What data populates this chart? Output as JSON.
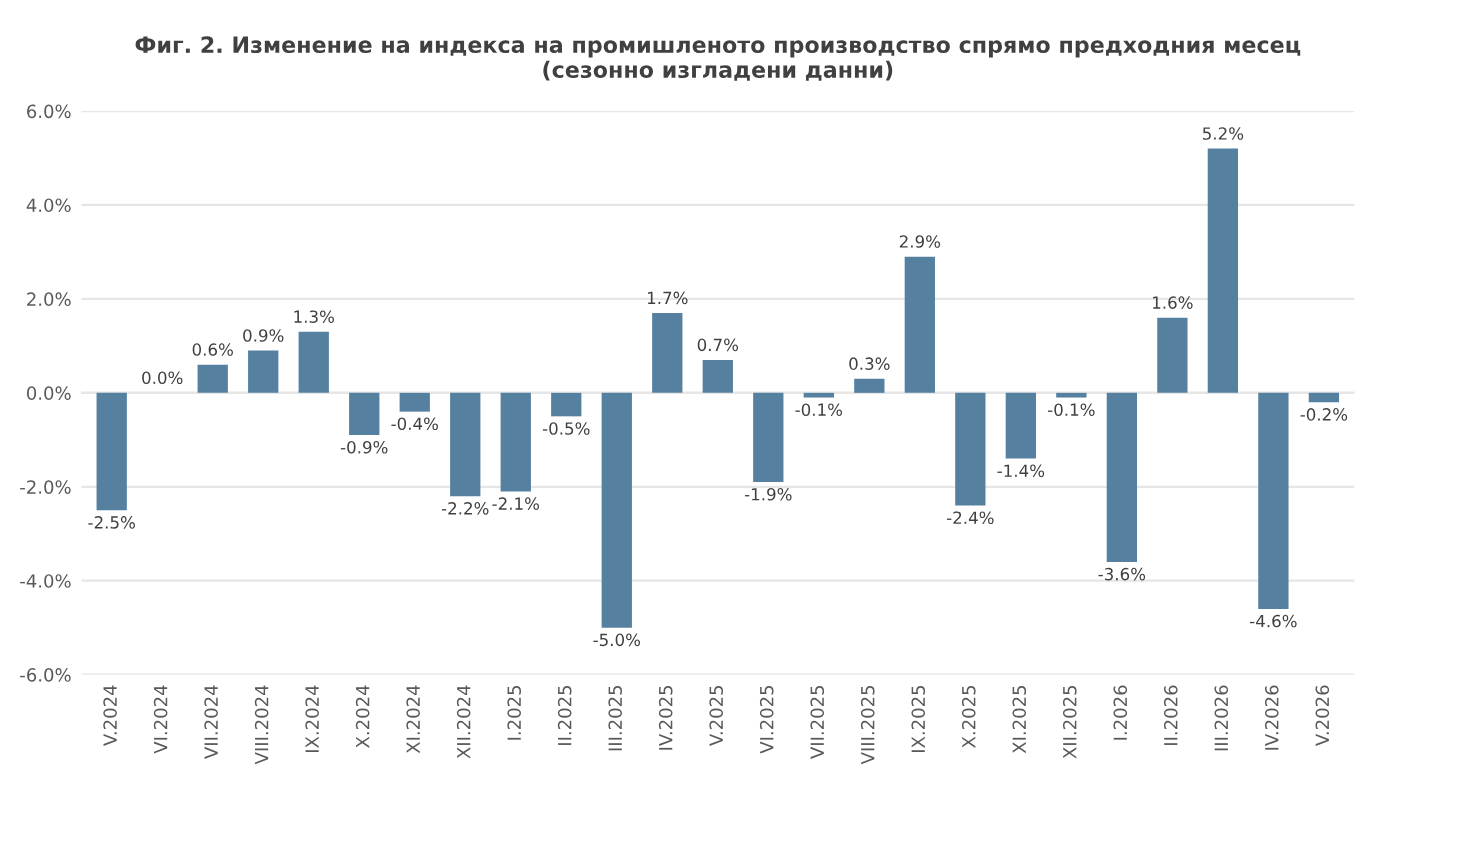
{
  "chart_data": {
    "type": "bar",
    "title": "Фиг. 2. Изменение на индекса на промишленото производство спрямо предходния месец\n(сезонно изгладени данни)",
    "categories": [
      "V.2024",
      "VI.2024",
      "VII.2024",
      "VIII.2024",
      "IX.2024",
      "X.2024",
      "XI.2024",
      "XII.2024",
      "I.2025",
      "II.2025",
      "III.2025",
      "IV.2025",
      "V.2025",
      "VI.2025",
      "VII.2025",
      "VIII.2025",
      "IX.2025",
      "X.2025",
      "XI.2025",
      "XII.2025",
      "I.2026",
      "II.2026",
      "III.2026",
      "IV.2026",
      "V.2026"
    ],
    "values": [
      -2.5,
      0.0,
      0.6,
      0.9,
      1.3,
      -0.9,
      -0.4,
      -2.2,
      -2.1,
      -0.5,
      -5.0,
      1.7,
      0.7,
      -1.9,
      -0.1,
      0.3,
      2.9,
      -2.4,
      -1.4,
      -0.1,
      -3.6,
      1.6,
      5.2,
      -4.6,
      -0.2
    ],
    "value_labels": [
      "-2.5%",
      "0.0%",
      "0.6%",
      "0.9%",
      "1.3%",
      "-0.9%",
      "-0.4%",
      "-2.2%",
      "-2.1%",
      "-0.5%",
      "-5.0%",
      "1.7%",
      "0.7%",
      "-1.9%",
      "-0.1%",
      "0.3%",
      "2.9%",
      "-2.4%",
      "-1.4%",
      "-0.1%",
      "-3.6%",
      "1.6%",
      "5.2%",
      "-4.6%",
      "-0.2%"
    ],
    "color": "#55809f",
    "ylim": [
      -6,
      6
    ],
    "yticks": [
      {
        "value": -6,
        "label": "-6.0%"
      },
      {
        "value": -4,
        "label": "-4.0%"
      },
      {
        "value": -2,
        "label": "-2.0%"
      },
      {
        "value": 0,
        "label": "0.0%"
      },
      {
        "value": 2,
        "label": "2.0%"
      },
      {
        "value": 4,
        "label": "4.0%"
      },
      {
        "value": 6,
        "label": "6.0%"
      }
    ],
    "grid": "y"
  }
}
